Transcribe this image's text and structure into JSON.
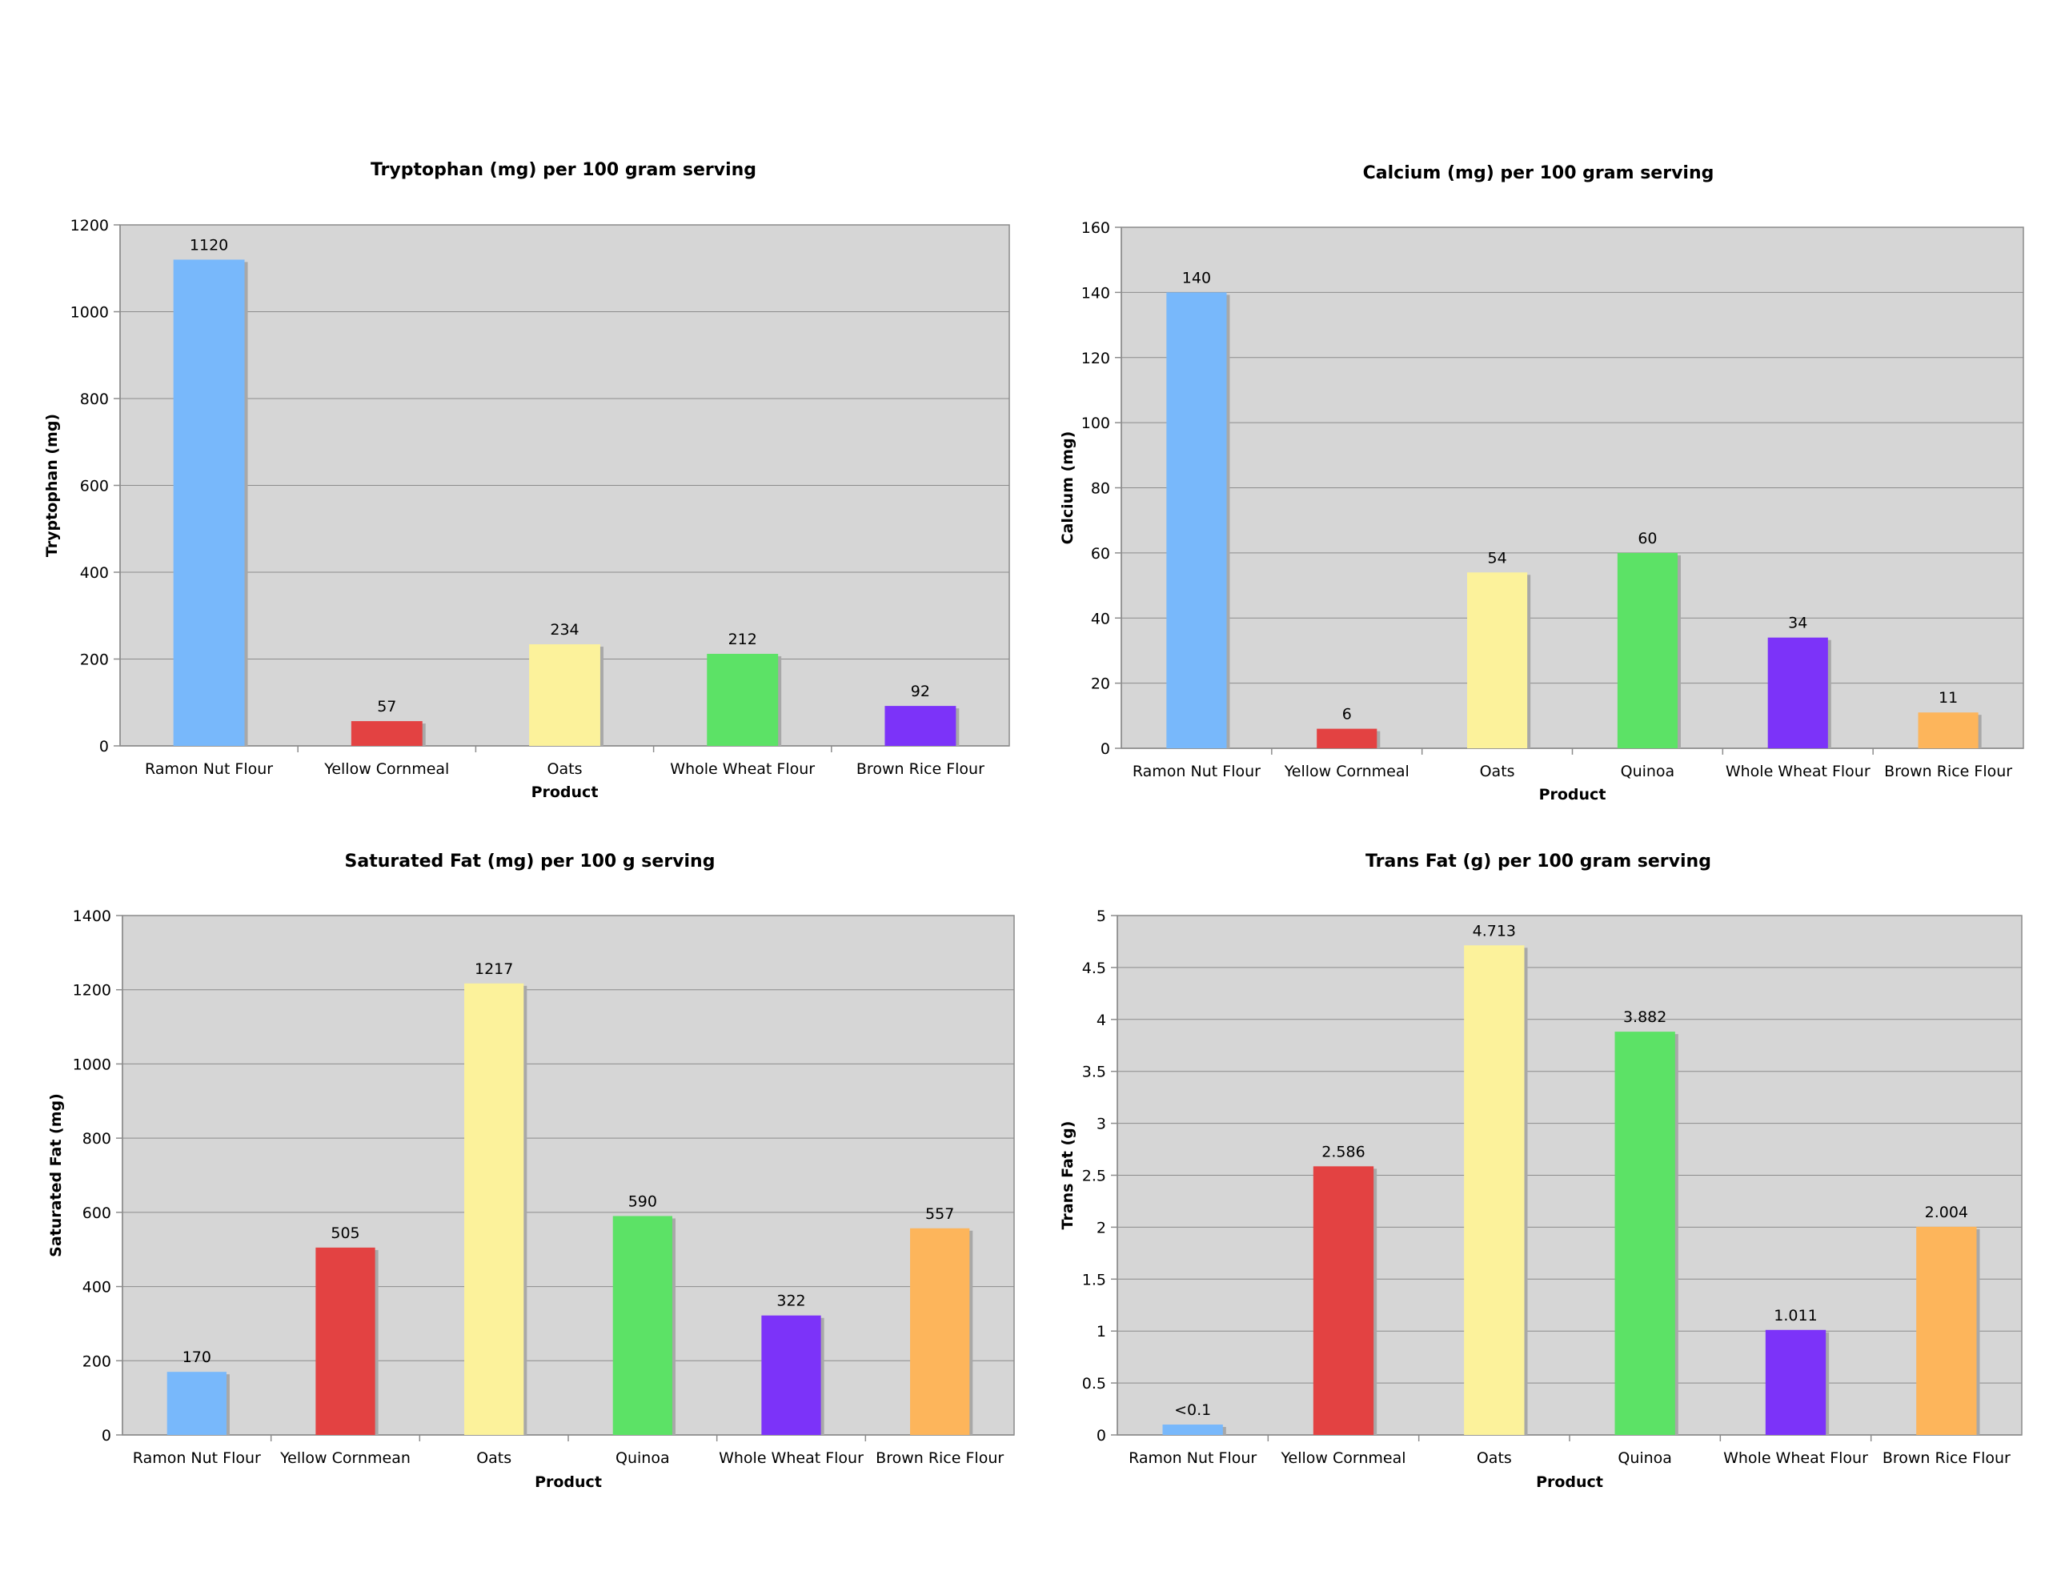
{
  "chart_data": [
    {
      "type": "bar",
      "title": "Tryptophan (mg) per 100 gram serving",
      "xlabel": "Product",
      "ylabel": "Tryptophan (mg)",
      "categories": [
        "Ramon Nut Flour",
        "Yellow Cornmeal",
        "Oats",
        "Whole Wheat Flour",
        "Brown Rice Flour"
      ],
      "values": [
        1120,
        57,
        234,
        212,
        92
      ],
      "value_labels": [
        "1120",
        "57",
        "234",
        "212",
        "92"
      ],
      "colors": [
        "#78b8fb",
        "#e34242",
        "#fcf29b",
        "#5ce266",
        "#7c33f9"
      ],
      "ylim": [
        0,
        1200
      ],
      "yticks": [
        0,
        200,
        400,
        600,
        800,
        1000,
        1200
      ],
      "ytick_labels": [
        "0",
        "200",
        "400",
        "600",
        "800",
        "1000",
        "1200"
      ],
      "grid": true,
      "legend": "none"
    },
    {
      "type": "bar",
      "title": "Calcium (mg) per 100 gram serving",
      "xlabel": "Product",
      "ylabel": "Calcium (mg)",
      "categories": [
        "Ramon Nut Flour",
        "Yellow Cornmeal",
        "Oats",
        "Quinoa",
        "Whole Wheat Flour",
        "Brown Rice Flour"
      ],
      "values": [
        140,
        6,
        54,
        60,
        34,
        11
      ],
      "value_labels": [
        "140",
        "6",
        "54",
        "60",
        "34",
        "11"
      ],
      "colors": [
        "#78b8fb",
        "#e34242",
        "#fcf29b",
        "#5ce266",
        "#7c33f9",
        "#fdb55b"
      ],
      "ylim": [
        0,
        160
      ],
      "yticks": [
        0,
        20,
        40,
        60,
        80,
        100,
        120,
        140,
        160
      ],
      "ytick_labels": [
        "0",
        "20",
        "40",
        "60",
        "80",
        "100",
        "120",
        "140",
        "160"
      ],
      "grid": true,
      "legend": "none"
    },
    {
      "type": "bar",
      "title": "Saturated Fat (mg) per 100 g serving",
      "xlabel": "Product",
      "ylabel": "Saturated Fat (mg)",
      "categories": [
        "Ramon Nut Flour",
        "Yellow Cornmean",
        "Oats",
        "Quinoa",
        "Whole Wheat Flour",
        "Brown Rice Flour"
      ],
      "values": [
        170,
        505,
        1217,
        590,
        322,
        557
      ],
      "value_labels": [
        "170",
        "505",
        "1217",
        "590",
        "322",
        "557"
      ],
      "colors": [
        "#78b8fb",
        "#e34242",
        "#fcf29b",
        "#5ce266",
        "#7c33f9",
        "#fdb55b"
      ],
      "ylim": [
        0,
        1400
      ],
      "yticks": [
        0,
        200,
        400,
        600,
        800,
        1000,
        1200,
        1400
      ],
      "ytick_labels": [
        "0",
        "200",
        "400",
        "600",
        "800",
        "1000",
        "1200",
        "1400"
      ],
      "grid": true,
      "legend": "none"
    },
    {
      "type": "bar",
      "title": "Trans Fat (g) per 100 gram serving",
      "xlabel": "Product",
      "ylabel": "Trans Fat (g)",
      "categories": [
        "Ramon Nut Flour",
        "Yellow Cornmeal",
        "Oats",
        "Quinoa",
        "Whole Wheat Flour",
        "Brown Rice Flour"
      ],
      "values": [
        0.1,
        2.586,
        4.713,
        3.882,
        1.011,
        2.004
      ],
      "value_labels": [
        "<0.1",
        "2.586",
        "4.713",
        "3.882",
        "1.011",
        "2.004"
      ],
      "colors": [
        "#78b8fb",
        "#e34242",
        "#fcf29b",
        "#5ce266",
        "#7c33f9",
        "#fdb55b"
      ],
      "ylim": [
        0,
        5
      ],
      "yticks": [
        0,
        0.5,
        1,
        1.5,
        2,
        2.5,
        3,
        3.5,
        4,
        4.5,
        5
      ],
      "ytick_labels": [
        "0",
        "0.5",
        "1",
        "1.5",
        "2",
        "2.5",
        "3",
        "3.5",
        "4",
        "4.5",
        "5"
      ],
      "grid": true,
      "legend": "none"
    }
  ]
}
